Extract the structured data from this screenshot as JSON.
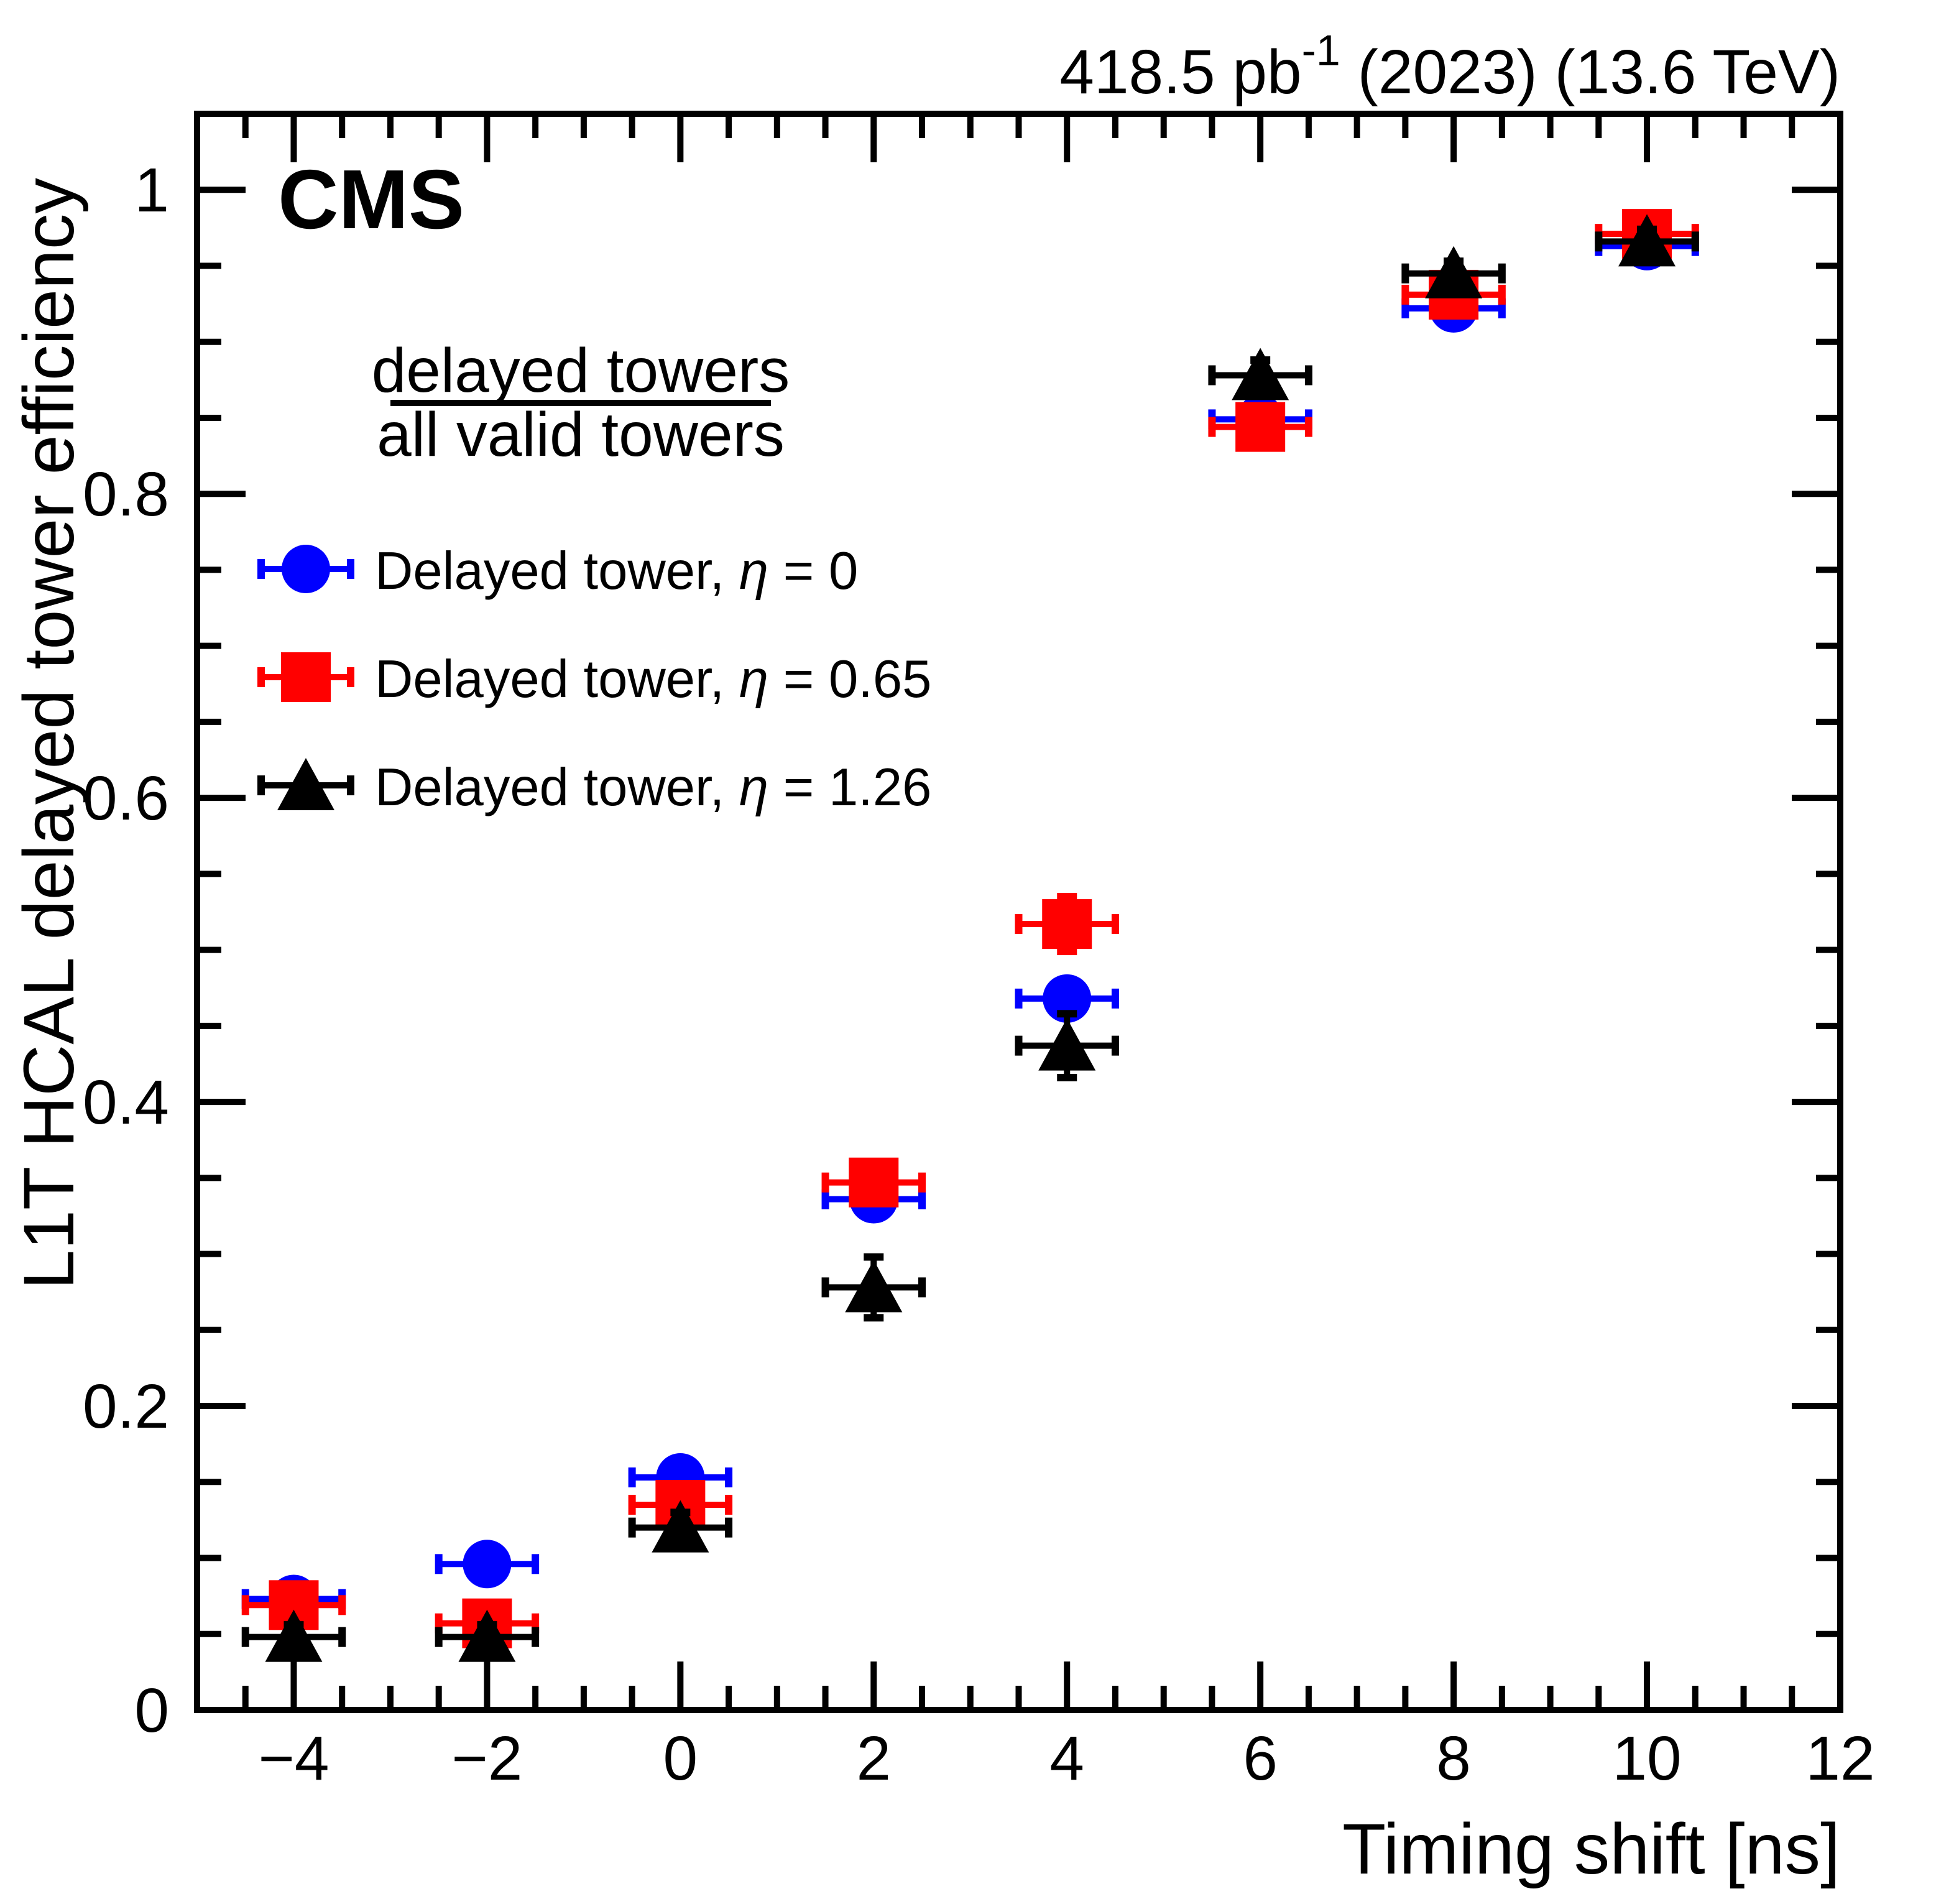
{
  "header": {
    "cms_label": "CMS",
    "lumi_prefix": "418.5 pb",
    "lumi_exponent": "-1",
    "lumi_suffix": " (2023) (13.6 TeV)",
    "lumi_full": "418.5 pb-1 (2023) (13.6 TeV)"
  },
  "ratio_label": {
    "numerator": "delayed towers",
    "denominator": "all valid towers"
  },
  "axes": {
    "x": {
      "title": "Timing shift [ns]",
      "min": -5,
      "max": 12,
      "major_step": 2,
      "minor_step": 0.5,
      "major_values": [
        -4,
        -2,
        0,
        2,
        4,
        6,
        8,
        10,
        12
      ],
      "major_labels": [
        "−4",
        "−2",
        "0",
        "2",
        "4",
        "6",
        "8",
        "10",
        "12"
      ]
    },
    "y": {
      "title": "L1T HCAL delayed tower efficiency",
      "min": 0,
      "max": 1.05,
      "major_step": 0.2,
      "minor_step": 0.05,
      "major_values": [
        0,
        0.2,
        0.4,
        0.6,
        0.8,
        1
      ],
      "major_labels": [
        "0",
        "0.2",
        "0.4",
        "0.6",
        "0.8",
        "1"
      ]
    }
  },
  "legend": {
    "items": [
      {
        "label": "Delayed tower, η = 0",
        "prefix": "Delayed tower, ",
        "symbol": "η",
        "suffix": " = 0",
        "marker": "circle",
        "color": "#0000ff"
      },
      {
        "label": "Delayed tower, η = 0.65",
        "prefix": "Delayed tower, ",
        "symbol": "η",
        "suffix": " = 0.65",
        "marker": "square",
        "color": "#ff0000"
      },
      {
        "label": "Delayed tower, η = 1.26",
        "prefix": "Delayed tower, ",
        "symbol": "η",
        "suffix": " = 1.26",
        "marker": "triangle",
        "color": "#000000"
      }
    ]
  },
  "chart_data": {
    "type": "scatter",
    "title": "",
    "xlabel": "Timing shift [ns]",
    "ylabel": "L1T HCAL delayed tower efficiency",
    "xlim": [
      -5,
      12
    ],
    "ylim": [
      0,
      1.05
    ],
    "grid": false,
    "legend_position": "upper-left",
    "x": [
      -4,
      -2,
      0,
      2,
      4,
      6,
      8,
      10
    ],
    "xerr": 0.5,
    "series": [
      {
        "name": "Delayed tower, η = 0",
        "marker": "circle",
        "color": "#0000ff",
        "values": [
          0.073,
          0.096,
          0.153,
          0.336,
          0.468,
          0.849,
          0.922,
          0.963
        ],
        "yerr": [
          0.01,
          0.01,
          0.01,
          0.01,
          0.012,
          0.01,
          0.008,
          0.006
        ]
      },
      {
        "name": "Delayed tower, η = 0.65",
        "marker": "square",
        "color": "#ff0000",
        "values": [
          0.069,
          0.057,
          0.135,
          0.347,
          0.517,
          0.844,
          0.931,
          0.971
        ],
        "yerr": [
          0.01,
          0.01,
          0.012,
          0.012,
          0.018,
          0.01,
          0.008,
          0.006
        ]
      },
      {
        "name": "Delayed tower, η = 1.26",
        "marker": "triangle",
        "color": "#000000",
        "values": [
          0.048,
          0.048,
          0.12,
          0.278,
          0.437,
          0.878,
          0.945,
          0.966
        ],
        "yerr": [
          0.008,
          0.008,
          0.01,
          0.02,
          0.021,
          0.01,
          0.008,
          0.008
        ]
      }
    ]
  },
  "colors": {
    "background": "#ffffff",
    "frame": "#000000",
    "series_blue": "#0000ff",
    "series_red": "#ff0000",
    "series_black": "#000000"
  }
}
